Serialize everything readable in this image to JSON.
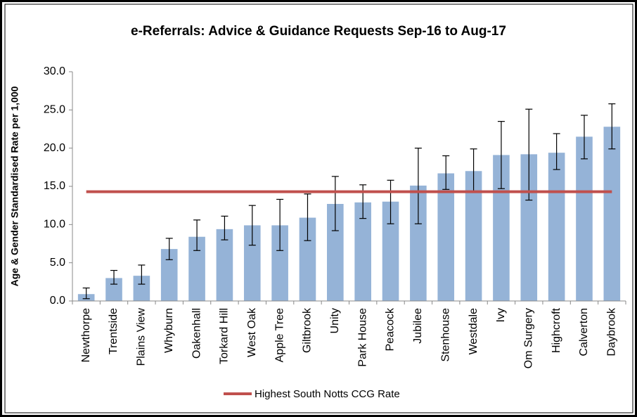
{
  "chart_data": {
    "type": "bar",
    "title": "e-Referrals: Advice & Guidance Requests Sep-16 to Aug-17",
    "y_label": "Age & Gender Standardised  Rate per 1,000",
    "categories": [
      "Newthorpe",
      "Trentside",
      "Plains View",
      "Whyburn",
      "Oakenhall",
      "Torkard Hill",
      "West Oak",
      "Apple Tree",
      "Giltbrook",
      "Unity",
      "Park House",
      "Peacock",
      "Jubilee",
      "Stenhouse",
      "Westdale",
      "Ivy",
      "Om Surgery",
      "Highcroft",
      "Calverton",
      "Daybrook"
    ],
    "values": [
      0.9,
      3.0,
      3.3,
      6.8,
      8.4,
      9.4,
      9.9,
      9.9,
      10.9,
      12.7,
      12.9,
      13.0,
      15.1,
      16.7,
      17.0,
      19.1,
      19.2,
      19.4,
      21.5,
      22.8
    ],
    "lower": [
      0.3,
      2.2,
      2.2,
      5.4,
      6.6,
      8.0,
      7.3,
      6.6,
      7.9,
      9.2,
      10.8,
      10.1,
      10.1,
      14.6,
      14.3,
      14.7,
      13.2,
      17.2,
      18.6,
      19.9
    ],
    "upper": [
      1.7,
      4.0,
      4.7,
      8.2,
      10.6,
      11.1,
      12.5,
      13.3,
      14.0,
      16.3,
      15.2,
      15.8,
      20.0,
      19.0,
      19.9,
      23.5,
      25.1,
      21.9,
      24.3,
      25.8
    ],
    "color": "#95b3d7",
    "reference_line": {
      "name": "Highest South Notts CCG Rate",
      "value": 14.3,
      "color": "#c0504d"
    },
    "ylim": [
      0,
      30
    ],
    "yticks": [
      {
        "value": 0,
        "label": "0.0"
      },
      {
        "value": 5,
        "label": "5.0"
      },
      {
        "value": 10,
        "label": "10.0"
      },
      {
        "value": 15,
        "label": "15.0"
      },
      {
        "value": 20,
        "label": "20.0"
      },
      {
        "value": 25,
        "label": "25.0"
      },
      {
        "value": 30,
        "label": "30.0"
      }
    ],
    "grid": false,
    "legend": "bottom"
  }
}
